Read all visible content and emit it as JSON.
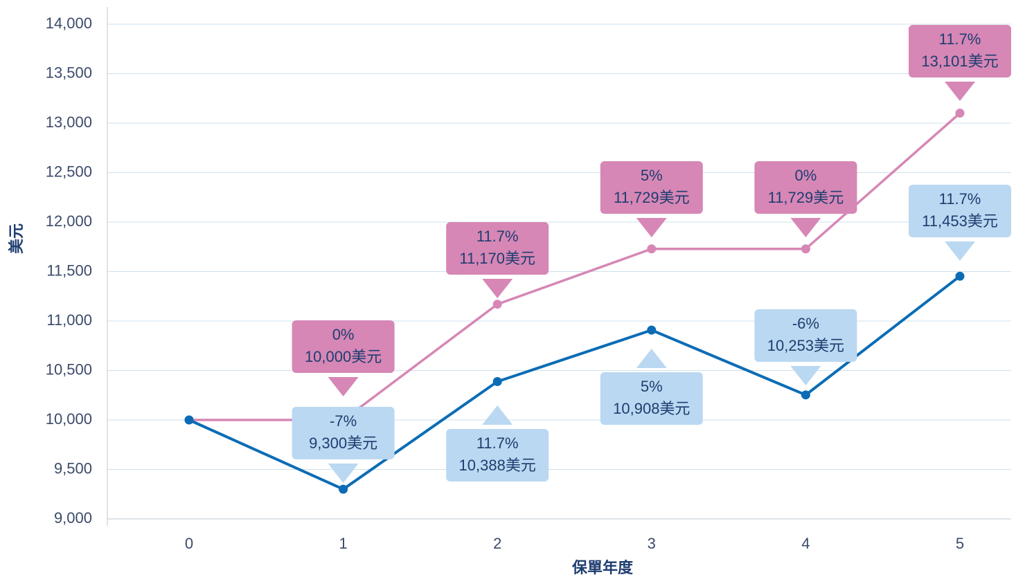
{
  "chart_data": {
    "type": "line",
    "xlabel": "保單年度",
    "ylabel": "美元",
    "categories": [
      "0",
      "1",
      "2",
      "3",
      "4",
      "5"
    ],
    "ylim": [
      9000,
      14000
    ],
    "yticks": [
      {
        "value": 9000,
        "label": "9,000"
      },
      {
        "value": 9500,
        "label": "9,500"
      },
      {
        "value": 10000,
        "label": "10,000"
      },
      {
        "value": 10500,
        "label": "10,500"
      },
      {
        "value": 11000,
        "label": "11,000"
      },
      {
        "value": 11500,
        "label": "11,500"
      },
      {
        "value": 12000,
        "label": "12,000"
      },
      {
        "value": 12500,
        "label": "12,500"
      },
      {
        "value": 13000,
        "label": "13,000"
      },
      {
        "value": 13500,
        "label": "13,500"
      },
      {
        "value": 14000,
        "label": "14,000"
      }
    ],
    "grid": true,
    "series": [
      {
        "color": "#d687b5",
        "box_color": "#d687b5",
        "values": [
          10000,
          10000,
          11170,
          11729,
          11729,
          13101
        ],
        "value_labels": [
          null,
          "10,000美元",
          "11,170美元",
          "11,729美元",
          "11,729美元",
          "13,101美元"
        ],
        "rates": [
          null,
          0,
          11.7,
          5,
          0,
          11.7
        ],
        "rate_labels": [
          null,
          "0%",
          "11.7%",
          "5%",
          "0%",
          "11.7%"
        ]
      },
      {
        "color": "#0b6cb5",
        "box_color": "#bad8f1",
        "values": [
          10000,
          9300,
          10388,
          10908,
          10253,
          11453
        ],
        "value_labels": [
          null,
          "9,300美元",
          "10,388美元",
          "10,908美元",
          "10,253美元",
          "11,453美元"
        ],
        "rates": [
          null,
          -7,
          11.7,
          5,
          -6,
          11.7
        ],
        "rate_labels": [
          null,
          "-7%",
          "11.7%",
          "5%",
          "-6%",
          "11.7%"
        ]
      }
    ]
  }
}
